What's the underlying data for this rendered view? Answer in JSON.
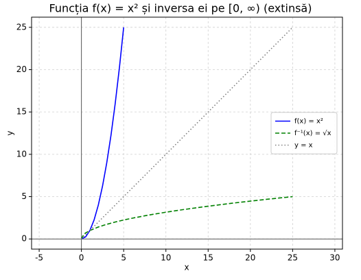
{
  "chart_data": {
    "type": "line",
    "title": "Funcția f(x) = x² și inversa ei pe [0, ∞) (extinsă)",
    "x_label": "x",
    "y_label": "y",
    "series": [
      {
        "name": "f(x) = x²",
        "color": "#0000ff",
        "style": "solid",
        "x": [
          0,
          0.5,
          1,
          1.5,
          2,
          2.5,
          3,
          3.5,
          4,
          4.5,
          5
        ],
        "values": [
          0,
          0.25,
          1,
          2.25,
          4,
          6.25,
          9,
          12.25,
          16,
          20.25,
          25
        ]
      },
      {
        "name": "f⁻¹(x) = √x",
        "color": "#008000",
        "style": "dashed",
        "x": [
          0,
          0.25,
          0.5,
          1,
          2,
          3,
          4,
          5,
          6,
          8,
          10,
          12,
          15,
          18,
          20,
          22,
          25
        ],
        "values": [
          0,
          0.5,
          0.71,
          1,
          1.41,
          1.73,
          2,
          2.24,
          2.45,
          2.83,
          3.16,
          3.46,
          3.87,
          4.24,
          4.47,
          4.69,
          5
        ]
      },
      {
        "name": "y = x",
        "color": "#808080",
        "style": "dotted",
        "x": [
          0,
          25
        ],
        "values": [
          0,
          25
        ]
      }
    ],
    "xlim": [
      -5.9,
      30.9
    ],
    "xticks": [
      -5,
      0,
      5,
      10,
      15,
      20,
      25,
      30
    ],
    "ylim": [
      -1.2,
      26.2
    ],
    "yticks": [
      0,
      5,
      10,
      15,
      20,
      25
    ],
    "grid": true,
    "legend": "center right"
  }
}
